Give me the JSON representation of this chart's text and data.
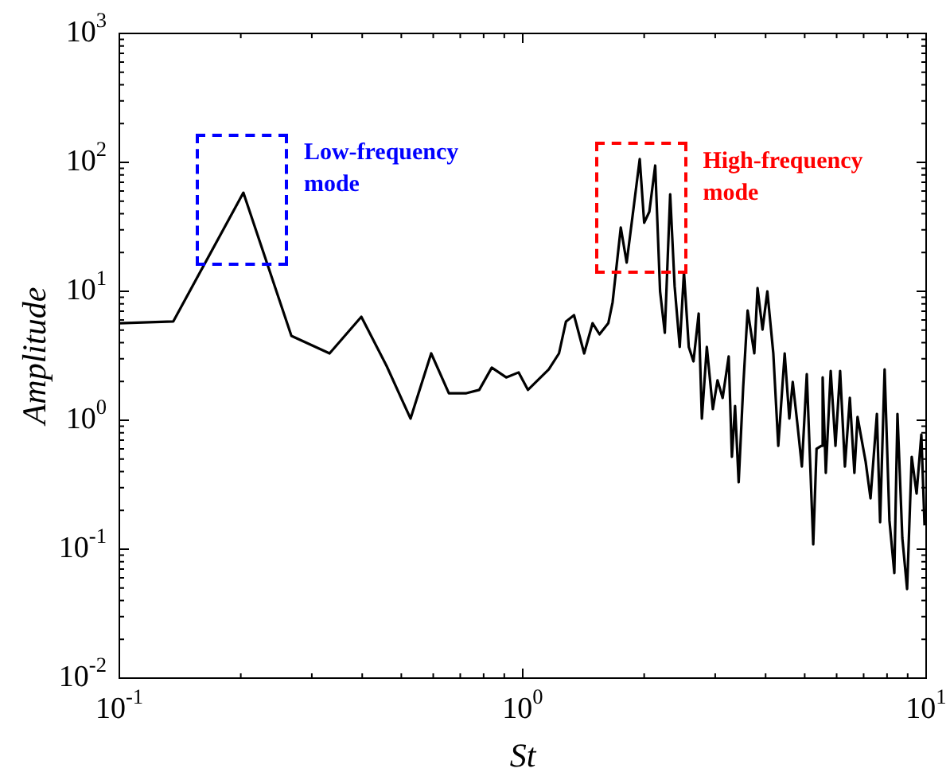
{
  "chart_data": {
    "type": "line",
    "xlabel": "St",
    "ylabel": "Amplitude",
    "log": "xy",
    "grid": false,
    "legend": false,
    "marker": "none",
    "line_style": "solid",
    "xlim": [
      0.1,
      10
    ],
    "ylim": [
      0.01,
      1000
    ],
    "xticks": [
      {
        "value": 0.1,
        "label": "10$^{-1}$"
      },
      {
        "value": 1,
        "label": "10$^{0}$"
      },
      {
        "value": 10,
        "label": "10$^{1}$"
      }
    ],
    "yticks": [
      {
        "value": 0.01,
        "label": "10$^{-2}$"
      },
      {
        "value": 0.1,
        "label": "10$^{-1}$"
      },
      {
        "value": 1,
        "label": "10$^{0}$"
      },
      {
        "value": 10,
        "label": "10$^{1}$"
      },
      {
        "value": 100,
        "label": "10$^{2}$"
      },
      {
        "value": 1000,
        "label": "10$^{3}$"
      }
    ],
    "annotations": [
      {
        "text": "Low-frequency mode",
        "x": 0.203,
        "y": 58.2
      },
      {
        "text": "High-frequency mode",
        "x": 1.98,
        "y": 50
      }
    ],
    "series": [
      {
        "color": "#000000",
        "x": [
          0.1,
          0.136,
          0.203,
          0.267,
          0.332,
          0.398,
          0.46,
          0.527,
          0.593,
          0.656,
          0.725,
          0.78,
          0.838,
          0.91,
          0.977,
          1.03,
          1.16,
          1.23,
          1.28,
          1.34,
          1.42,
          1.49,
          1.55,
          1.63,
          1.67,
          1.75,
          1.81,
          1.95,
          2.0,
          2.06,
          2.13,
          2.19,
          2.25,
          2.32,
          2.38,
          2.45,
          2.51,
          2.58,
          2.65,
          2.73,
          2.78,
          2.86,
          2.96,
          3.04,
          3.13,
          3.24,
          3.3,
          3.36,
          3.43,
          3.52,
          3.61,
          3.75,
          3.82,
          3.93,
          4.04,
          4.18,
          4.3,
          4.46,
          4.58,
          4.67,
          4.79,
          4.92,
          5.06,
          5.25,
          5.35,
          5.5,
          5.54,
          5.64,
          5.8,
          5.96,
          6.12,
          6.29,
          6.47,
          6.64,
          6.76,
          7.08,
          7.28,
          7.55,
          7.69,
          7.89,
          8.11,
          8.34,
          8.49,
          8.73,
          8.97,
          9.21,
          9.47,
          9.73,
          9.91
        ],
        "values": [
          5.66,
          5.83,
          58.2,
          4.51,
          3.3,
          6.35,
          2.63,
          1.03,
          3.3,
          1.62,
          1.62,
          1.72,
          2.56,
          2.15,
          2.35,
          1.72,
          2.48,
          3.3,
          5.83,
          6.53,
          3.3,
          5.66,
          4.64,
          5.66,
          8.2,
          31.2,
          16.7,
          106,
          34,
          41.4,
          94.5,
          10,
          4.77,
          56.6,
          10.9,
          3.7,
          14.1,
          3.7,
          2.86,
          6.72,
          1.03,
          3.7,
          1.22,
          2.04,
          1.49,
          3.12,
          0.52,
          1.29,
          0.33,
          1.82,
          7.11,
          3.3,
          10.6,
          5.05,
          10,
          3.3,
          0.634,
          3.3,
          1.03,
          1.98,
          0.97,
          0.438,
          2.28,
          0.109,
          0.6,
          0.634,
          2.15,
          0.391,
          2.41,
          0.634,
          2.41,
          0.438,
          1.49,
          0.391,
          1.06,
          0.477,
          0.248,
          1.12,
          0.162,
          2.48,
          0.167,
          0.0653,
          1.12,
          0.122,
          0.0491,
          0.52,
          0.27,
          0.774,
          0.153
        ]
      }
    ]
  }
}
